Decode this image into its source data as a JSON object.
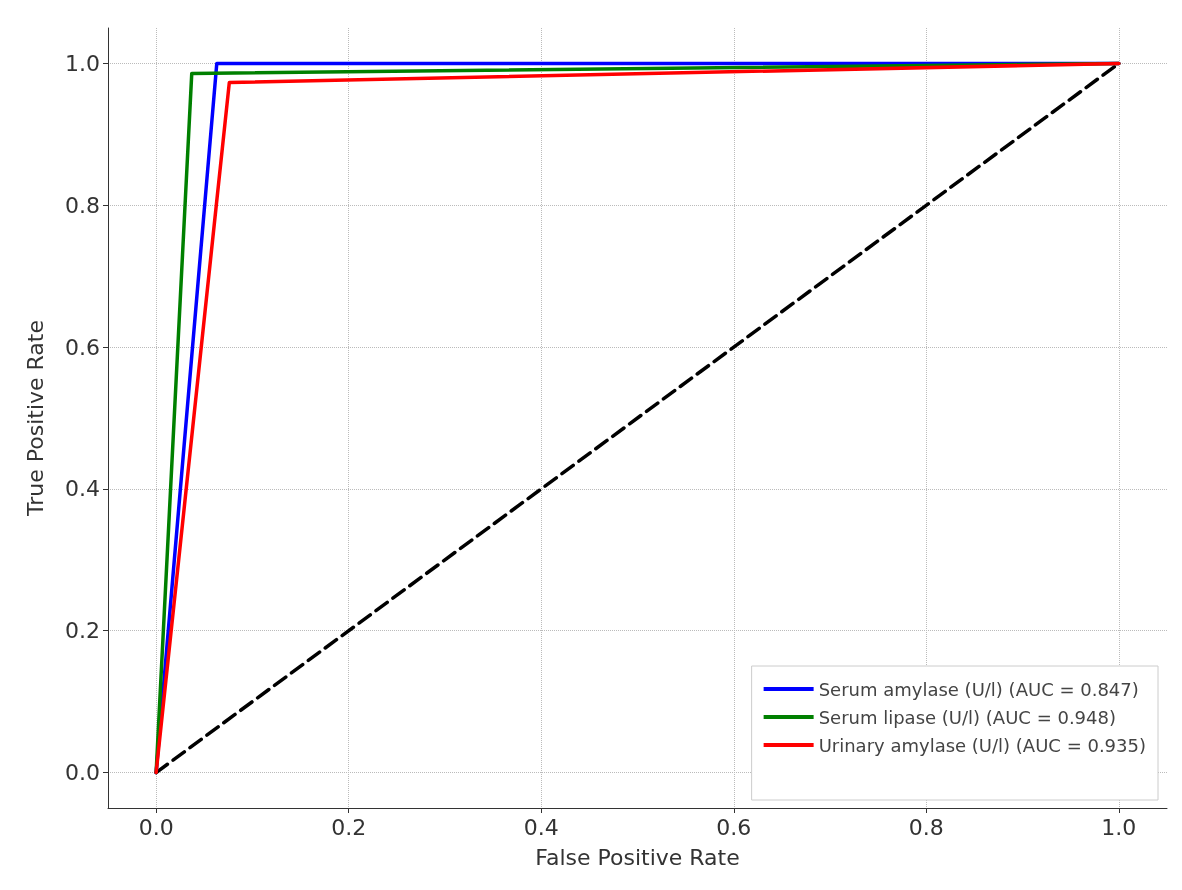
{
  "chart_data": {
    "type": "line",
    "xlabel": "False Positive Rate",
    "ylabel": "True Positive Rate",
    "xlim": [
      -0.05,
      1.05
    ],
    "ylim": [
      -0.05,
      1.05
    ],
    "xticks": [
      {
        "value": 0,
        "label": "0.0"
      },
      0.2,
      0.4,
      0.6,
      0.8,
      {
        "value": 1,
        "label": "1.0"
      }
    ],
    "yticks": [
      {
        "value": 0,
        "label": "0.0"
      },
      0.2,
      0.4,
      0.6,
      0.8,
      {
        "value": 1,
        "label": "1.0"
      }
    ],
    "grid": true,
    "legend": "bottom right",
    "marker": "none",
    "series": [
      {
        "name": "Serum amylase (U/l) (AUC = 0.847)",
        "color": "#0000ff",
        "x": [
          0,
          0.063,
          1
        ],
        "values": [
          0,
          1,
          1
        ]
      },
      {
        "name": "Serum lipase (U/l) (AUC = 0.948)",
        "color": "#008000",
        "x": [
          0,
          0.037,
          1
        ],
        "values": [
          0,
          0.986,
          1
        ]
      },
      {
        "name": "Urinary amylase (U/l) (AUC = 0.935)",
        "color": "#ff0000",
        "x": [
          0,
          0.076,
          1
        ],
        "values": [
          0,
          0.973,
          1
        ]
      },
      {
        "color": "#000000",
        "line_style": "dashed",
        "x": [
          0,
          1
        ],
        "values": [
          0,
          1
        ]
      }
    ]
  }
}
